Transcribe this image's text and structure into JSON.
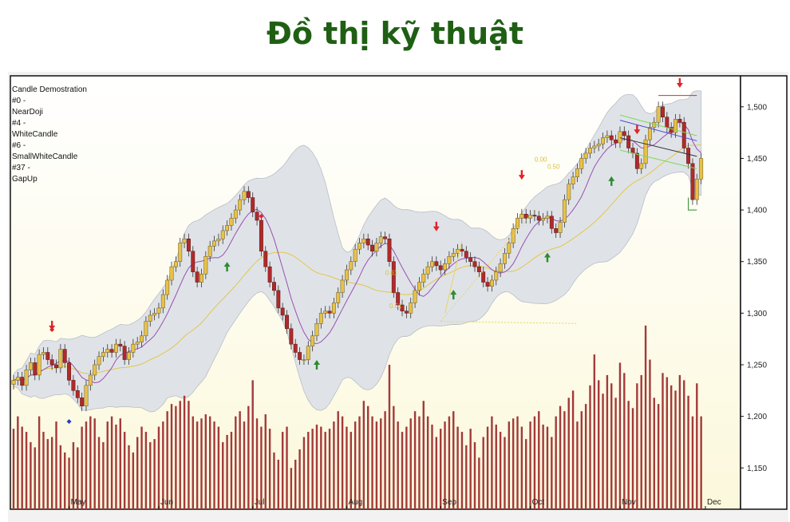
{
  "header": {
    "title": "Đồ thị kỹ thuật"
  },
  "colors": {
    "title": "#1f5f14",
    "up_candle": "#e8c14a",
    "down_candle": "#b02a2a",
    "volume": "#a33a3a",
    "band_fill": "#dfe3e8",
    "ma_fast": "#9a4fb0",
    "ma_slow": "#e2c64a",
    "signal_up": "#2d8b2d",
    "signal_down": "#e0242a"
  },
  "chart_data": {
    "type": "candlestick",
    "legend": [
      "Candle Demostration",
      "#0 -",
      "NearDoji",
      "#4 -",
      "WhiteCandle",
      "#6 -",
      "SmallWhiteCandle",
      "#37 -",
      "GapUp"
    ],
    "y_ticks": [
      "1,500",
      "1,450",
      "1,400",
      "1,350",
      "1,300",
      "1,250",
      "1,200",
      "1,150"
    ],
    "y_range": [
      1110,
      1530
    ],
    "x_labels": [
      "May",
      "Jun",
      "Jul",
      "Aug",
      "Sep",
      "Oct",
      "Nov",
      "Dec"
    ],
    "fib_labels": [
      "0.00",
      "0.50",
      "0.61",
      "0.61"
    ],
    "close": [
      1235,
      1238,
      1230,
      1245,
      1252,
      1240,
      1260,
      1262,
      1255,
      1250,
      1247,
      1265,
      1252,
      1235,
      1225,
      1218,
      1210,
      1230,
      1240,
      1250,
      1258,
      1262,
      1265,
      1262,
      1270,
      1268,
      1255,
      1262,
      1270,
      1272,
      1278,
      1292,
      1298,
      1300,
      1305,
      1318,
      1332,
      1345,
      1350,
      1368,
      1372,
      1360,
      1340,
      1330,
      1338,
      1355,
      1365,
      1370,
      1372,
      1380,
      1385,
      1392,
      1400,
      1410,
      1418,
      1412,
      1398,
      1390,
      1360,
      1345,
      1330,
      1322,
      1305,
      1298,
      1285,
      1270,
      1262,
      1255,
      1255,
      1268,
      1278,
      1290,
      1300,
      1302,
      1300,
      1310,
      1320,
      1332,
      1342,
      1350,
      1362,
      1368,
      1372,
      1366,
      1360,
      1368,
      1374,
      1372,
      1350,
      1320,
      1308,
      1302,
      1300,
      1310,
      1322,
      1330,
      1338,
      1345,
      1350,
      1346,
      1342,
      1348,
      1355,
      1358,
      1362,
      1360,
      1354,
      1350,
      1345,
      1340,
      1330,
      1326,
      1332,
      1340,
      1348,
      1358,
      1368,
      1382,
      1392,
      1396,
      1392,
      1395,
      1394,
      1390,
      1392,
      1394,
      1382,
      1378,
      1388,
      1410,
      1425,
      1432,
      1440,
      1450,
      1455,
      1460,
      1462,
      1464,
      1470,
      1472,
      1468,
      1465,
      1476,
      1472,
      1460,
      1455,
      1440,
      1445,
      1468,
      1480,
      1485,
      1500,
      1490,
      1480,
      1475,
      1488,
      1485,
      1460,
      1445,
      1410,
      1430,
      1450
    ],
    "volume": [
      1188,
      1200,
      1190,
      1185,
      1175,
      1170,
      1200,
      1185,
      1178,
      1180,
      1195,
      1172,
      1165,
      1160,
      1175,
      1170,
      1190,
      1195,
      1200,
      1198,
      1180,
      1175,
      1195,
      1200,
      1192,
      1198,
      1185,
      1172,
      1165,
      1180,
      1190,
      1185,
      1175,
      1178,
      1190,
      1195,
      1205,
      1212,
      1210,
      1215,
      1220,
      1215,
      1200,
      1195,
      1198,
      1202,
      1200,
      1195,
      1190,
      1175,
      1182,
      1185,
      1200,
      1205,
      1195,
      1210,
      1235,
      1198,
      1190,
      1202,
      1188,
      1165,
      1158,
      1185,
      1190,
      1150,
      1158,
      1168,
      1180,
      1185,
      1188,
      1192,
      1190,
      1185,
      1188,
      1195,
      1205,
      1200,
      1190,
      1185,
      1195,
      1200,
      1215,
      1210,
      1200,
      1195,
      1198,
      1205,
      1250,
      1210,
      1195,
      1185,
      1190,
      1198,
      1205,
      1200,
      1215,
      1200,
      1192,
      1180,
      1188,
      1195,
      1200,
      1205,
      1190,
      1185,
      1172,
      1188,
      1175,
      1160,
      1180,
      1190,
      1200,
      1192,
      1185,
      1180,
      1195,
      1198,
      1200,
      1190,
      1178,
      1195,
      1200,
      1205,
      1192,
      1190,
      1180,
      1200,
      1210,
      1205,
      1218,
      1225,
      1195,
      1205,
      1212,
      1230,
      1260,
      1235,
      1222,
      1240,
      1232,
      1218,
      1252,
      1242,
      1215,
      1208,
      1232,
      1240,
      1288,
      1255,
      1218,
      1212,
      1242,
      1238,
      1230,
      1225,
      1240,
      1235,
      1220,
      1200,
      1232,
      1200
    ],
    "signals_up": [
      50,
      71,
      103,
      125,
      140,
      162
    ],
    "signals_down": [
      9,
      99,
      119,
      146,
      156
    ],
    "signals_diamond_red": [
      9,
      58
    ],
    "signals_diamond_blue": [
      13
    ]
  }
}
